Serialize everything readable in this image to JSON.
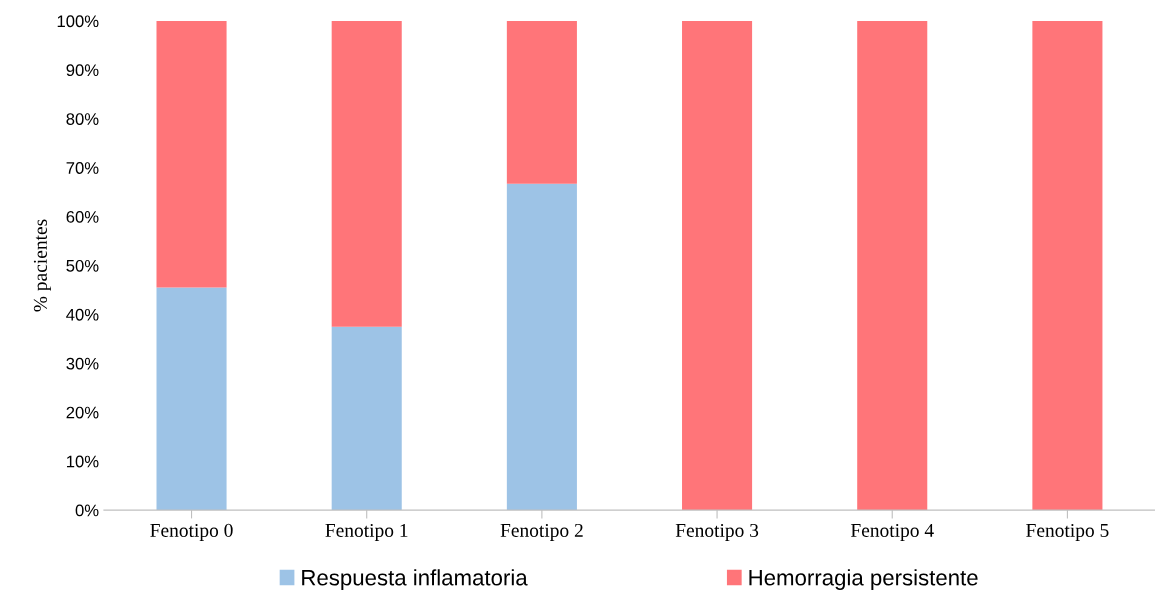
{
  "chart_data": {
    "type": "bar",
    "stacked": true,
    "ylabel": "% pacientes",
    "categories": [
      "Fenotipo 0",
      "Fenotipo 1",
      "Fenotipo 2",
      "Fenotipo 3",
      "Fenotipo 4",
      "Fenotipo 5"
    ],
    "series": [
      {
        "name": "Respuesta inflamatoria",
        "color": "#9dc3e6",
        "values": [
          45.5,
          37.5,
          66.7,
          0,
          0,
          0
        ]
      },
      {
        "name": "Hemorragia persistente",
        "color": "#ff7579",
        "values": [
          54.5,
          62.5,
          33.3,
          100,
          100,
          100
        ]
      }
    ],
    "ylim": [
      0,
      100
    ],
    "yticks": [
      {
        "value": 0,
        "label": "0%"
      },
      {
        "value": 10,
        "label": "10%"
      },
      {
        "value": 20,
        "label": "20%"
      },
      {
        "value": 30,
        "label": "30%"
      },
      {
        "value": 40,
        "label": "40%"
      },
      {
        "value": 50,
        "label": "50%"
      },
      {
        "value": 60,
        "label": "60%"
      },
      {
        "value": 70,
        "label": "70%"
      },
      {
        "value": 80,
        "label": "80%"
      },
      {
        "value": 90,
        "label": "90%"
      },
      {
        "value": 100,
        "label": "100%"
      }
    ],
    "grid": false,
    "legend": "bottom"
  }
}
